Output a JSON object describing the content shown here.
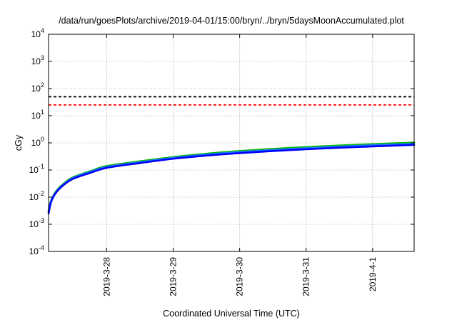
{
  "chart_data": {
    "type": "line",
    "title": "/data/run/goesPlots/archive/2019-04-01/15:00/bryn/../bryn/5daysMoonAccumulated.plot",
    "xlabel": "Coordinated Universal Time (UTC)",
    "ylabel": "cGy",
    "yscale": "log",
    "ylim": [
      0.0001,
      10000
    ],
    "yticks": [
      {
        "base": "10",
        "exp": "-4"
      },
      {
        "base": "10",
        "exp": "-3"
      },
      {
        "base": "10",
        "exp": "-2"
      },
      {
        "base": "10",
        "exp": "-1"
      },
      {
        "base": "10",
        "exp": "0"
      },
      {
        "base": "10",
        "exp": "1"
      },
      {
        "base": "10",
        "exp": "2"
      },
      {
        "base": "10",
        "exp": "3"
      },
      {
        "base": "10",
        "exp": "4"
      }
    ],
    "xlim": [
      "2019-03-27T03:00",
      "2019-04-01T15:00"
    ],
    "xticks": [
      "2019-3-28",
      "2019-3-29",
      "2019-3-30",
      "2019-3-31",
      "2019-4-1"
    ],
    "grid": true,
    "thresholds": [
      {
        "value": 50,
        "color": "#000000",
        "style": "dashed"
      },
      {
        "value": 25,
        "color": "#ff0000",
        "style": "dashed"
      }
    ],
    "series": [
      {
        "color": "#00bb00",
        "x": [
          "2019-03-27T03:00",
          "2019-03-27T04:00",
          "2019-03-27T06:00",
          "2019-03-27T09:00",
          "2019-03-27T12:00",
          "2019-03-27T18:00",
          "2019-03-28T00:00",
          "2019-03-28T12:00",
          "2019-03-29T00:00",
          "2019-03-29T12:00",
          "2019-03-30T00:00",
          "2019-03-30T12:00",
          "2019-03-31T00:00",
          "2019-03-31T12:00",
          "2019-04-01T00:00",
          "2019-04-01T15:00"
        ],
        "y": [
          0.003,
          0.008,
          0.018,
          0.035,
          0.055,
          0.09,
          0.14,
          0.21,
          0.3,
          0.4,
          0.5,
          0.6,
          0.7,
          0.8,
          0.9,
          1.02
        ]
      },
      {
        "color": "#1f77ff",
        "x": [
          "2019-03-27T03:00",
          "2019-03-27T04:00",
          "2019-03-27T06:00",
          "2019-03-27T09:00",
          "2019-03-27T12:00",
          "2019-03-27T18:00",
          "2019-03-28T00:00",
          "2019-03-28T12:00",
          "2019-03-29T00:00",
          "2019-03-29T12:00",
          "2019-03-30T00:00",
          "2019-03-30T12:00",
          "2019-03-31T00:00",
          "2019-03-31T12:00",
          "2019-04-01T00:00",
          "2019-04-01T15:00"
        ],
        "y": [
          0.0028,
          0.0075,
          0.017,
          0.033,
          0.052,
          0.085,
          0.13,
          0.195,
          0.28,
          0.37,
          0.46,
          0.55,
          0.64,
          0.73,
          0.82,
          0.92
        ]
      },
      {
        "color": "#0000ff",
        "x": [
          "2019-03-27T03:00",
          "2019-03-27T04:00",
          "2019-03-27T06:00",
          "2019-03-27T09:00",
          "2019-03-27T12:00",
          "2019-03-27T18:00",
          "2019-03-28T00:00",
          "2019-03-28T12:00",
          "2019-03-29T00:00",
          "2019-03-29T12:00",
          "2019-03-30T00:00",
          "2019-03-30T12:00",
          "2019-03-31T00:00",
          "2019-03-31T12:00",
          "2019-04-01T00:00",
          "2019-04-01T15:00"
        ],
        "y": [
          0.0025,
          0.007,
          0.016,
          0.031,
          0.048,
          0.078,
          0.12,
          0.18,
          0.26,
          0.34,
          0.42,
          0.5,
          0.58,
          0.66,
          0.74,
          0.84
        ]
      }
    ]
  }
}
